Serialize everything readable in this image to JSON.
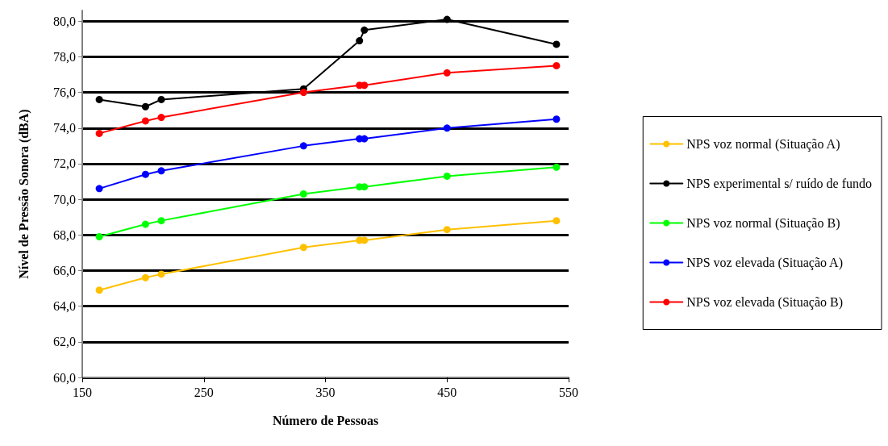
{
  "chart_data": {
    "type": "line",
    "xlabel": "Número de Pessoas",
    "ylabel": "Nível de Pressão Sonora (dBA)",
    "x": [
      164,
      202,
      215,
      332,
      378,
      382,
      450,
      540
    ],
    "series": [
      {
        "name": "NPS voz normal (Situação A)",
        "color": "#ffc000",
        "values": [
          64.9,
          65.6,
          65.8,
          67.3,
          67.7,
          67.7,
          68.3,
          68.8
        ]
      },
      {
        "name": "NPS experimental s/ ruído de fundo",
        "color": "#000000",
        "values": [
          75.6,
          75.2,
          75.6,
          76.2,
          78.9,
          79.5,
          80.1,
          78.7
        ]
      },
      {
        "name": "NPS voz normal (Situação B)",
        "color": "#00ff00",
        "values": [
          67.9,
          68.6,
          68.8,
          70.3,
          70.7,
          70.7,
          71.3,
          71.8
        ]
      },
      {
        "name": "NPS voz elevada (Situação A)",
        "color": "#0000ff",
        "values": [
          70.6,
          71.4,
          71.6,
          73.0,
          73.4,
          73.4,
          74.0,
          74.5
        ]
      },
      {
        "name": "NPS voz elevada (Situação B)",
        "color": "#ff0000",
        "values": [
          73.7,
          74.4,
          74.6,
          76.0,
          76.4,
          76.4,
          77.1,
          77.5
        ]
      }
    ],
    "xlim": [
      150,
      550
    ],
    "xticks": [
      150,
      250,
      350,
      450,
      550
    ],
    "ylim": [
      60,
      80.6
    ],
    "yticks": [
      {
        "value": 60,
        "label": "60,0"
      },
      {
        "value": 62,
        "label": "62,0"
      },
      {
        "value": 64,
        "label": "64,0"
      },
      {
        "value": 66,
        "label": "66,0"
      },
      {
        "value": 68,
        "label": "68,0"
      },
      {
        "value": 70,
        "label": "70,0"
      },
      {
        "value": 72,
        "label": "72,0"
      },
      {
        "value": 74,
        "label": "74,0"
      },
      {
        "value": 76,
        "label": "76,0"
      },
      {
        "value": 78,
        "label": "78,0"
      },
      {
        "value": 80,
        "label": "80,0"
      }
    ],
    "grid": "y",
    "legend": "right",
    "marker": "circle",
    "line_style": "solid"
  }
}
